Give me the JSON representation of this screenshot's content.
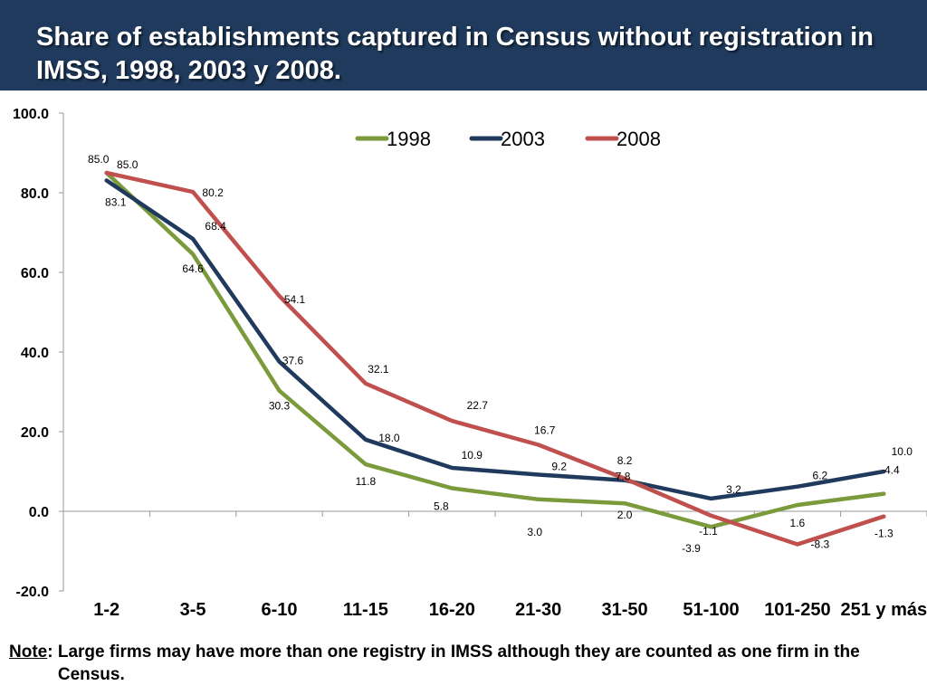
{
  "slide": {
    "title": "Share of establishments captured in Census without registration in IMSS, 1998, 2003 y 2008."
  },
  "footnote": {
    "label": "Note",
    "text": "Large firms may have more than one registry in IMSS although they are counted as one firm in the Census."
  },
  "colors": {
    "header_bg": "#1f3a5c",
    "series_1998": "#7a9a3c",
    "series_2003": "#1f3a5c",
    "series_2008": "#c0504d"
  },
  "chart_data": {
    "type": "line",
    "title": "",
    "xlabel": "",
    "ylabel": "",
    "categories": [
      "1-2",
      "3-5",
      "6-10",
      "11-15",
      "16-20",
      "21-30",
      "31-50",
      "51-100",
      "101-250",
      "251 y más"
    ],
    "yticks": [
      "100.0",
      "80.0",
      "60.0",
      "40.0",
      "20.0",
      "0.0",
      "-20.0"
    ],
    "ylim": [
      -20,
      100
    ],
    "grid": false,
    "legend_position": "top",
    "series": [
      {
        "name": "1998",
        "color": "#7a9a3c",
        "values": [
          85.0,
          64.6,
          30.3,
          11.8,
          5.8,
          3.0,
          2.0,
          -3.9,
          1.6,
          4.4
        ]
      },
      {
        "name": "2003",
        "color": "#1f3a5c",
        "values": [
          83.1,
          68.4,
          37.6,
          18.0,
          10.9,
          9.2,
          7.8,
          3.2,
          6.2,
          10.0
        ]
      },
      {
        "name": "2008",
        "color": "#c0504d",
        "values": [
          85.0,
          80.2,
          54.1,
          32.1,
          22.7,
          16.7,
          8.2,
          -1.1,
          -8.3,
          -1.3
        ]
      }
    ],
    "data_labels": {
      "1998": [
        "85.0",
        "64.6",
        "30.3",
        "11.8",
        "5.8",
        "3.0",
        "2.0",
        "-3.9",
        "1.6",
        "4.4"
      ],
      "2003": [
        "83.1",
        "68.4",
        "37.6",
        "18.0",
        "10.9",
        "9.2",
        "7.8",
        "3.2",
        "6.2",
        "10.0"
      ],
      "2008": [
        "85.0",
        "80.2",
        "54.1",
        "32.1",
        "22.7",
        "16.7",
        "8.2",
        "-1.1",
        "-8.3",
        "-1.3"
      ]
    }
  }
}
